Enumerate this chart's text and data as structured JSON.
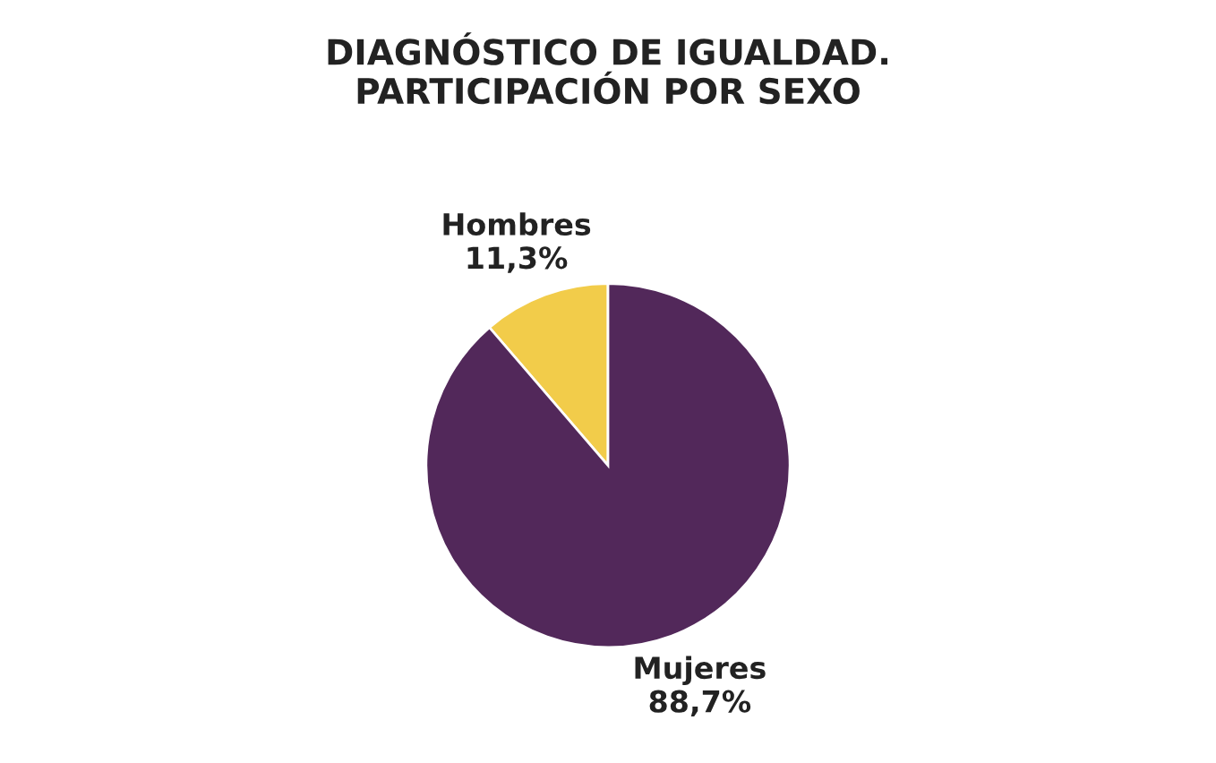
{
  "chart_data": {
    "type": "pie",
    "title": "DIAGNÓSTICO DE IGUALDAD.\nPARTICIPACIÓN POR SEXO",
    "categories": [
      "Hombres",
      "Mujeres"
    ],
    "values": [
      11.3,
      88.7
    ],
    "colors": [
      "#f2cc4a",
      "#52285a"
    ],
    "value_labels": [
      "11,3%",
      "88,7%"
    ],
    "legend": false
  }
}
